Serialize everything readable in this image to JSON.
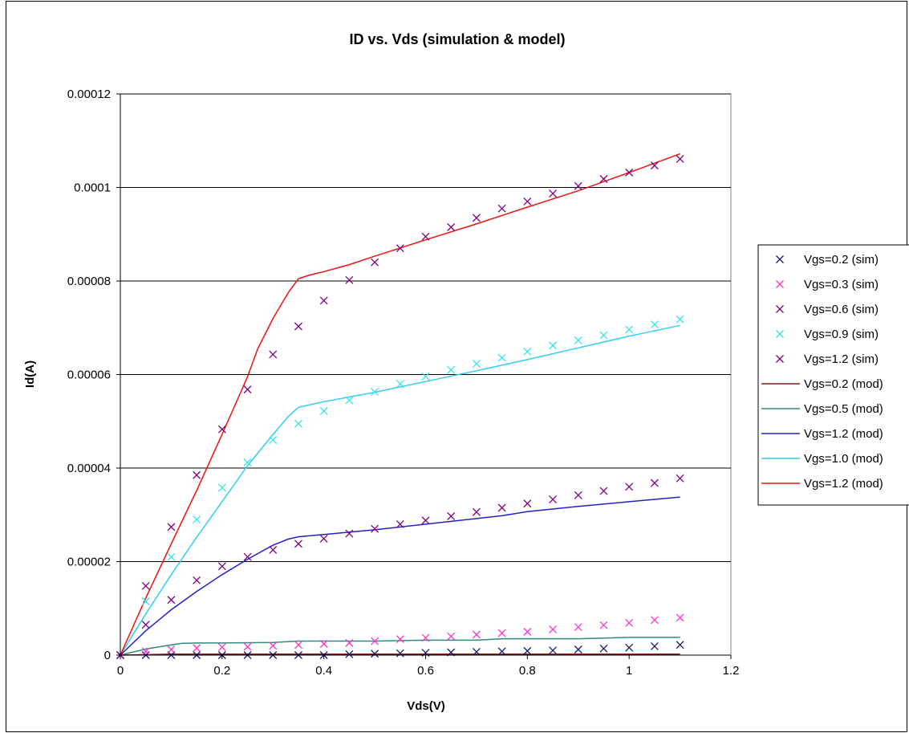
{
  "chart_data": {
    "type": "scatter",
    "title": "ID vs. Vds (simulation & model)",
    "xlabel": "Vds(V)",
    "ylabel": "Id(A)",
    "xlim": [
      0,
      1.2
    ],
    "ylim": [
      0,
      0.00012
    ],
    "x_ticks": [
      "0",
      "0.2",
      "0.4",
      "0.6",
      "0.8",
      "1",
      "1.2"
    ],
    "y_ticks": [
      "0",
      "0.00002",
      "0.00004",
      "0.00006",
      "0.00008",
      "0.0001",
      "0.00012"
    ],
    "grid": "horizontal",
    "legend_position": "right",
    "series": [
      {
        "name": "Vgs=0.2 (sim)",
        "kind": "marker",
        "color": "#1a1a6e",
        "x": [
          0,
          0.05,
          0.1,
          0.15,
          0.2,
          0.25,
          0.3,
          0.35,
          0.4,
          0.45,
          0.5,
          0.55,
          0.6,
          0.65,
          0.7,
          0.75,
          0.8,
          0.85,
          0.9,
          0.95,
          1.0,
          1.05,
          1.1
        ],
        "y": [
          0,
          0,
          0,
          0,
          0,
          0,
          0,
          0,
          0,
          2e-07,
          3e-07,
          4e-07,
          5e-07,
          6e-07,
          7e-07,
          8e-07,
          9e-07,
          1e-06,
          1.2e-06,
          1.4e-06,
          1.6e-06,
          1.9e-06,
          2.2e-06
        ]
      },
      {
        "name": "Vgs=0.3 (sim)",
        "kind": "marker",
        "color": "#ff33cc",
        "x": [
          0,
          0.05,
          0.1,
          0.15,
          0.2,
          0.25,
          0.3,
          0.35,
          0.4,
          0.45,
          0.5,
          0.55,
          0.6,
          0.65,
          0.7,
          0.75,
          0.8,
          0.85,
          0.9,
          0.95,
          1.0,
          1.05,
          1.1
        ],
        "y": [
          0,
          8e-07,
          1.2e-06,
          1.5e-06,
          1.7e-06,
          1.8e-06,
          2e-06,
          2.2e-06,
          2.4e-06,
          2.6e-06,
          3e-06,
          3.4e-06,
          3.7e-06,
          4e-06,
          4.4e-06,
          4.7e-06,
          5e-06,
          5.5e-06,
          6e-06,
          6.4e-06,
          6.9e-06,
          7.5e-06,
          8e-06
        ]
      },
      {
        "name": "Vgs=0.6 (sim)",
        "kind": "marker",
        "color": "#800080",
        "x": [
          0,
          0.05,
          0.1,
          0.15,
          0.2,
          0.25,
          0.3,
          0.35,
          0.4,
          0.45,
          0.5,
          0.55,
          0.6,
          0.65,
          0.7,
          0.75,
          0.8,
          0.85,
          0.9,
          0.95,
          1.0,
          1.05,
          1.1
        ],
        "y": [
          0,
          6.5e-06,
          1.18e-05,
          1.6e-05,
          1.9e-05,
          2.1e-05,
          2.25e-05,
          2.38e-05,
          2.49e-05,
          2.6e-05,
          2.7e-05,
          2.8e-05,
          2.88e-05,
          2.97e-05,
          3.06e-05,
          3.15e-05,
          3.24e-05,
          3.33e-05,
          3.42e-05,
          3.51e-05,
          3.6e-05,
          3.68e-05,
          3.78e-05
        ]
      },
      {
        "name": "Vgs=0.9 (sim)",
        "kind": "marker",
        "color": "#33e6e6",
        "x": [
          0,
          0.05,
          0.1,
          0.15,
          0.2,
          0.25,
          0.3,
          0.35,
          0.4,
          0.45,
          0.5,
          0.55,
          0.6,
          0.65,
          0.7,
          0.75,
          0.8,
          0.85,
          0.9,
          0.95,
          1.0,
          1.05,
          1.1
        ],
        "y": [
          0,
          1.15e-05,
          2.1e-05,
          2.9e-05,
          3.58e-05,
          4.12e-05,
          4.6e-05,
          4.95e-05,
          5.22e-05,
          5.45e-05,
          5.63e-05,
          5.8e-05,
          5.96e-05,
          6.1e-05,
          6.23e-05,
          6.36e-05,
          6.49e-05,
          6.62e-05,
          6.73e-05,
          6.84e-05,
          6.96e-05,
          7.07e-05,
          7.18e-05
        ]
      },
      {
        "name": "Vgs=1.2 (sim)",
        "kind": "marker",
        "color": "#800080",
        "x": [
          0,
          0.05,
          0.1,
          0.15,
          0.2,
          0.25,
          0.3,
          0.35,
          0.4,
          0.45,
          0.5,
          0.55,
          0.6,
          0.65,
          0.7,
          0.75,
          0.8,
          0.85,
          0.9,
          0.95,
          1.0,
          1.05,
          1.1
        ],
        "y": [
          0,
          1.48e-05,
          2.74e-05,
          3.85e-05,
          4.83e-05,
          5.68e-05,
          6.43e-05,
          7.03e-05,
          7.58e-05,
          8.02e-05,
          8.4e-05,
          8.7e-05,
          8.95e-05,
          9.15e-05,
          9.35e-05,
          9.55e-05,
          9.7e-05,
          9.87e-05,
          0.0001003,
          0.0001018,
          0.0001032,
          0.0001047,
          0.0001061
        ]
      },
      {
        "name": "Vgs=0.2 (mod)",
        "kind": "line",
        "color": "#8b1a1a",
        "x": [
          0,
          0.05,
          0.1,
          0.2,
          0.4,
          0.6,
          0.8,
          1.0,
          1.1
        ],
        "y": [
          0,
          1e-07,
          2e-07,
          2e-07,
          2e-07,
          2e-07,
          2e-07,
          2e-07,
          2e-07
        ]
      },
      {
        "name": "Vgs=0.5 (mod)",
        "kind": "line",
        "color": "#2e8b7a",
        "x": [
          0,
          0.05,
          0.1,
          0.12,
          0.15,
          0.2,
          0.3,
          0.35,
          0.4,
          0.5,
          0.6,
          0.7,
          0.75,
          0.8,
          0.9,
          1.0,
          1.1
        ],
        "y": [
          0,
          1.3e-06,
          2.2e-06,
          2.5e-06,
          2.6e-06,
          2.6e-06,
          2.7e-06,
          3e-06,
          3e-06,
          3e-06,
          3.2e-06,
          3.2e-06,
          3.5e-06,
          3.5e-06,
          3.5e-06,
          3.8e-06,
          3.8e-06
        ]
      },
      {
        "name": "Vgs=1.2 (mod)",
        "kind": "line",
        "color": "#2222cc",
        "x": [
          0,
          0.05,
          0.1,
          0.15,
          0.2,
          0.25,
          0.3,
          0.33,
          0.35,
          0.4,
          0.5,
          0.6,
          0.7,
          0.75,
          0.8,
          0.9,
          1.0,
          1.1
        ],
        "y": [
          0,
          5.2e-06,
          9.7e-06,
          1.36e-05,
          1.72e-05,
          2.05e-05,
          2.35e-05,
          2.48e-05,
          2.53e-05,
          2.58e-05,
          2.68e-05,
          2.8e-05,
          2.92e-05,
          2.98e-05,
          3.07e-05,
          3.18e-05,
          3.28e-05,
          3.38e-05
        ]
      },
      {
        "name": "Vgs=1.0 (mod)",
        "kind": "line",
        "color": "#33ccee",
        "x": [
          0,
          0.05,
          0.1,
          0.15,
          0.2,
          0.25,
          0.3,
          0.33,
          0.35,
          0.4,
          0.5,
          0.6,
          0.7,
          0.8,
          0.9,
          1.0,
          1.1
        ],
        "y": [
          0,
          8.8e-06,
          1.72e-05,
          2.52e-05,
          3.28e-05,
          4.05e-05,
          4.72e-05,
          5.1e-05,
          5.3e-05,
          5.42e-05,
          5.62e-05,
          5.85e-05,
          6.08e-05,
          6.32e-05,
          6.57e-05,
          6.82e-05,
          7.05e-05
        ]
      },
      {
        "name": "Vgs=1.2 (mod)",
        "kind": "line",
        "color": "#ee1111",
        "x": [
          0,
          0.05,
          0.1,
          0.15,
          0.2,
          0.25,
          0.27,
          0.3,
          0.33,
          0.35,
          0.37,
          0.4,
          0.45,
          0.5,
          0.6,
          0.7,
          0.8,
          0.9,
          1.0,
          1.1
        ],
        "y": [
          0,
          1.22e-05,
          2.38e-05,
          3.52e-05,
          4.72e-05,
          5.95e-05,
          6.55e-05,
          7.2e-05,
          7.75e-05,
          8.05e-05,
          8.12e-05,
          8.2e-05,
          8.35e-05,
          8.53e-05,
          8.88e-05,
          9.22e-05,
          9.58e-05,
          9.93e-05,
          0.0001032,
          0.0001072
        ]
      }
    ]
  }
}
